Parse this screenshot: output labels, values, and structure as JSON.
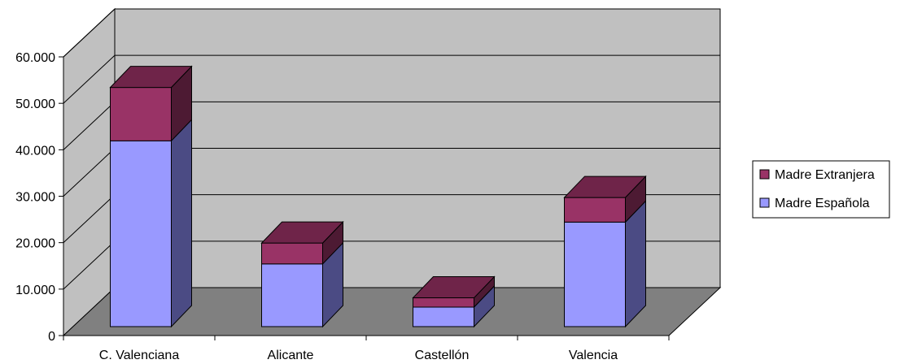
{
  "chart_data": {
    "type": "bar",
    "stacked": true,
    "three_d": true,
    "categories": [
      "C. Valenciana",
      "Alicante",
      "Castellón",
      "Valencia"
    ],
    "series": [
      {
        "name": "Madre Española",
        "values": [
          40000,
          13500,
          4200,
          22500
        ]
      },
      {
        "name": "Madre Extranjera",
        "values": [
          11500,
          4500,
          2000,
          5300
        ]
      }
    ],
    "y_ticks": [
      "0",
      "10.000",
      "20.000",
      "30.000",
      "40.000",
      "50.000",
      "60.000"
    ],
    "ylim": [
      0,
      60000
    ],
    "grid": true,
    "legend_position": "right",
    "legend": [
      "Madre Extranjera",
      "Madre Española"
    ],
    "colors": {
      "madre_espanola_front": "#9999ff",
      "madre_espanola_side": "#4b4b84",
      "madre_espanola_top": "#7a7acc",
      "madre_extranjera_front": "#993366",
      "madre_extranjera_side": "#4d1a33",
      "madre_extranjera_top": "#6f2449",
      "wall": "#c0c0c0",
      "floor": "#808080"
    }
  }
}
